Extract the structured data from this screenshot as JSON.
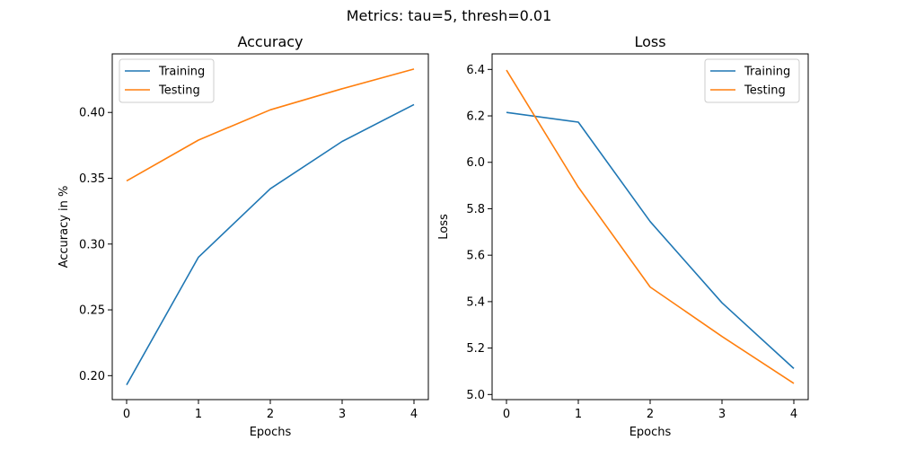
{
  "figure": {
    "suptitle": "Metrics: tau=5, thresh=0.01"
  },
  "chart_data": [
    {
      "type": "line",
      "title": "Accuracy",
      "xlabel": "Epochs",
      "ylabel": "Accuracy in %",
      "x": [
        0,
        1,
        2,
        3,
        4
      ],
      "xticks": [
        0,
        1,
        2,
        3,
        4
      ],
      "xlim": [
        -0.2,
        4.2
      ],
      "yticks": [
        0.2,
        0.25,
        0.3,
        0.35,
        0.4
      ],
      "ytick_labels": [
        "0.20",
        "0.25",
        "0.30",
        "0.35",
        "0.40"
      ],
      "ylim": [
        0.1818,
        0.4445
      ],
      "legend": "top-left",
      "grid": false,
      "series": [
        {
          "name": "Training",
          "color": "#1f77b4",
          "values": [
            0.193,
            0.29,
            0.342,
            0.378,
            0.406
          ]
        },
        {
          "name": "Testing",
          "color": "#ff7f0e",
          "values": [
            0.348,
            0.379,
            0.402,
            0.418,
            0.433
          ]
        }
      ]
    },
    {
      "type": "line",
      "title": "Loss",
      "xlabel": "Epochs",
      "ylabel": "Loss",
      "x": [
        0,
        1,
        2,
        3,
        4
      ],
      "xticks": [
        0,
        1,
        2,
        3,
        4
      ],
      "xlim": [
        -0.2,
        4.2
      ],
      "yticks": [
        5.0,
        5.2,
        5.4,
        5.6,
        5.8,
        6.0,
        6.2,
        6.4
      ],
      "ytick_labels": [
        "5.0",
        "5.2",
        "5.4",
        "5.6",
        "5.8",
        "6.0",
        "6.2",
        "6.4"
      ],
      "ylim": [
        4.978,
        6.467
      ],
      "legend": "top-right",
      "grid": false,
      "series": [
        {
          "name": "Training",
          "color": "#1f77b4",
          "values": [
            6.215,
            6.173,
            5.745,
            5.395,
            5.112
          ]
        },
        {
          "name": "Testing",
          "color": "#ff7f0e",
          "values": [
            6.397,
            5.893,
            5.463,
            5.25,
            5.048
          ]
        }
      ]
    }
  ]
}
